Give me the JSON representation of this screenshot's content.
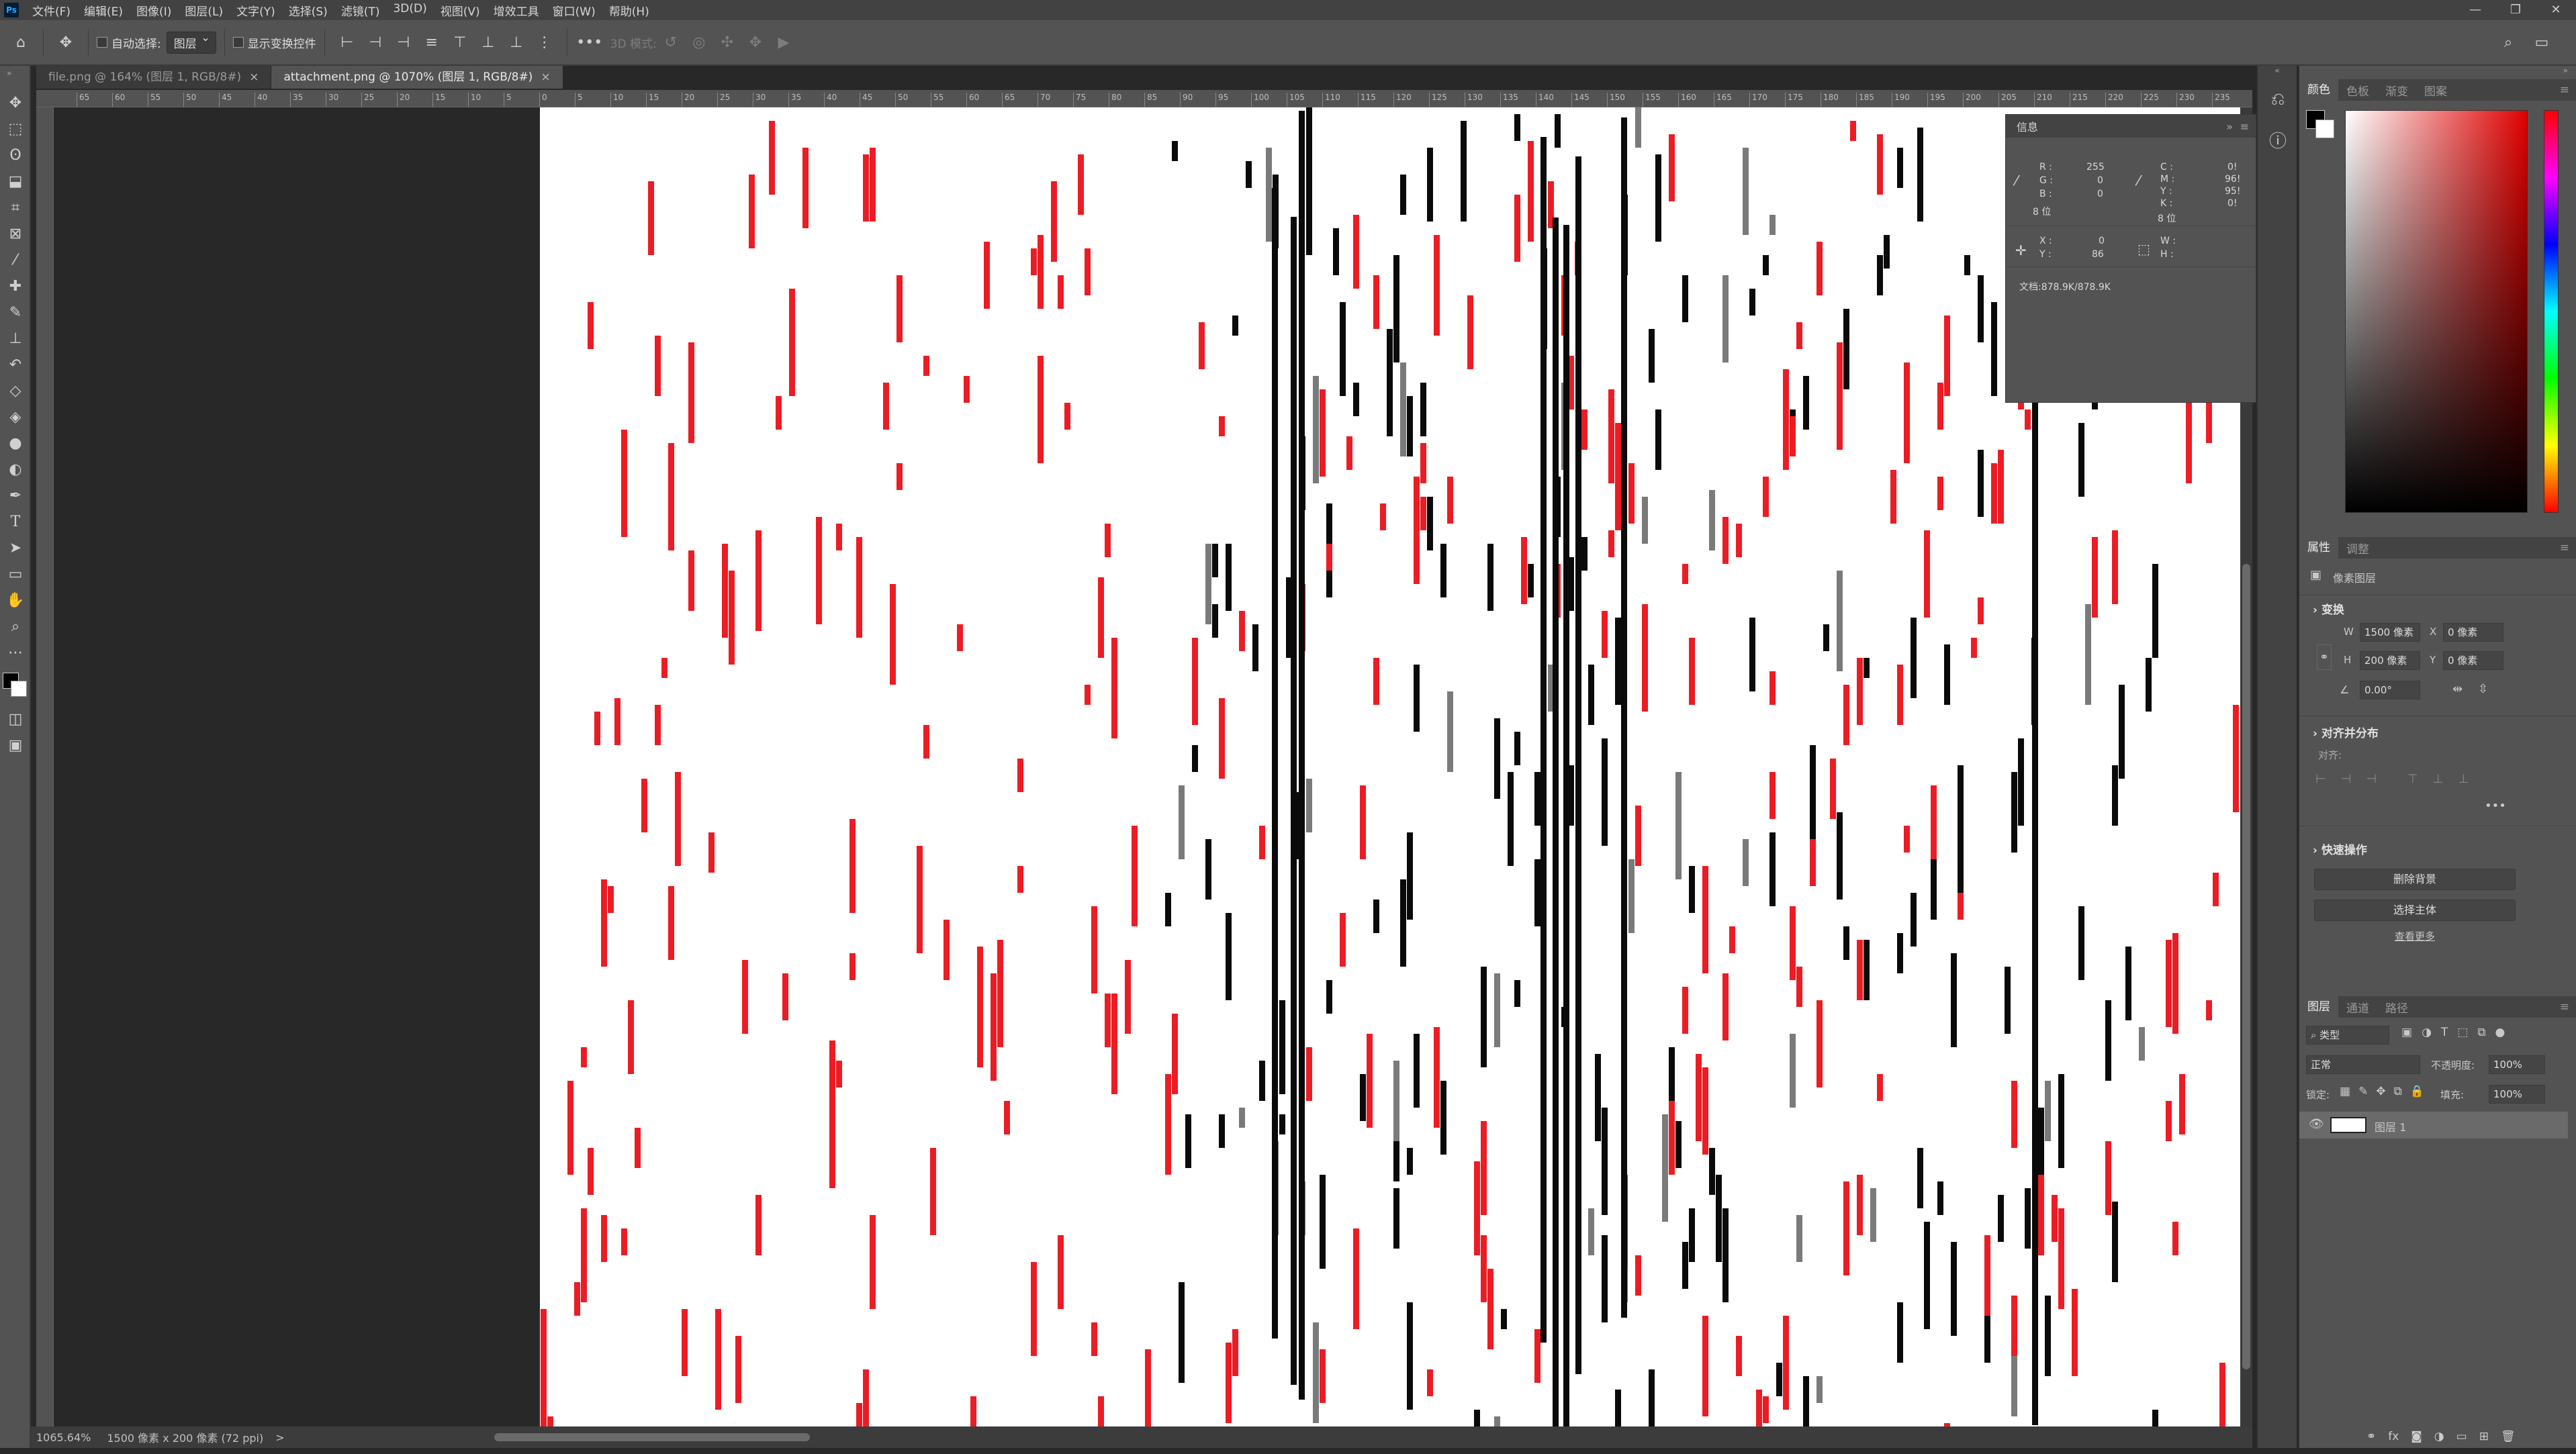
{
  "menu": [
    "文件(F)",
    "编辑(E)",
    "图像(I)",
    "图层(L)",
    "文字(Y)",
    "选择(S)",
    "滤镜(T)",
    "3D(D)",
    "视图(V)",
    "增效工具",
    "窗口(W)",
    "帮助(H)"
  ],
  "window_controls": [
    "—",
    "❐",
    "✕"
  ],
  "options": {
    "auto_select_label": "自动选择:",
    "auto_select_value": "图层",
    "show_transform_label": "显示变换控件",
    "mode_3d_label": "3D 模式:"
  },
  "tabs": [
    {
      "label": "file.png @ 164% (图层 1, RGB/8#)",
      "active": false
    },
    {
      "label": "attachment.png @ 1070% (图层 1, RGB/8#)",
      "active": true
    }
  ],
  "ruler_ticks": [
    "65",
    "60",
    "55",
    "50",
    "45",
    "40",
    "35",
    "30",
    "25",
    "20",
    "15",
    "10",
    "5",
    "0",
    "5",
    "10",
    "15",
    "20",
    "25",
    "30",
    "35",
    "40",
    "45",
    "50",
    "55",
    "60",
    "65",
    "70",
    "75",
    "80",
    "85",
    "90",
    "95",
    "100",
    "105",
    "110",
    "115",
    "120",
    "125",
    "130",
    "135",
    "140",
    "145",
    "150",
    "155",
    "160",
    "165",
    "170",
    "175",
    "180",
    "185",
    "190",
    "195",
    "200",
    "205",
    "210",
    "215",
    "220",
    "225",
    "230",
    "235"
  ],
  "status": {
    "zoom": "1065.64%",
    "doc_size": "1500 像素 x 200 像素 (72 ppi)",
    "arrow": ">"
  },
  "info_panel": {
    "title": "信息",
    "R_label": "R :",
    "R": "255",
    "G_label": "G :",
    "G": "0",
    "B_label": "B :",
    "B": "0",
    "C_label": "C :",
    "C": "0!",
    "M_label": "M :",
    "M": "96!",
    "Y_label": "Y :",
    "Y": "95!",
    "K_label": "K :",
    "K": "0!",
    "bits_left": "8 位",
    "bits_right": "8 位",
    "X_label": "X :",
    "X": "0",
    "Y2_label": "Y :",
    "Y2": "86",
    "W_label": "W :",
    "H_label": "H :",
    "doc": "文档:878.9K/878.9K"
  },
  "color_panel": {
    "tabs": [
      "颜色",
      "色板",
      "渐变",
      "图案"
    ]
  },
  "properties_panel": {
    "tabs": [
      "属性",
      "调整"
    ],
    "layer_type": "像素图层",
    "transform_title": "变换",
    "W_label": "W",
    "W": "1500 像素",
    "X_label": "X",
    "X": "0 像素",
    "H_label": "H",
    "H": "200 像素",
    "Y_label": "Y",
    "Y": "0 像素",
    "angle": "0.00°",
    "align_title": "对齐并分布",
    "align_label": "对齐:",
    "quick_title": "快速操作",
    "remove_bg": "删除背景",
    "select_subject": "选择主体",
    "see_more": "查看更多"
  },
  "layers_panel": {
    "tabs": [
      "图层",
      "通道",
      "路径"
    ],
    "filter": "类型",
    "blend": "正常",
    "opacity_label": "不透明度:",
    "opacity": "100%",
    "lock_label": "锁定:",
    "fill_label": "填充:",
    "fill": "100%",
    "layer_name": "图层 1"
  },
  "canvas_colors": {
    "red": "#ec1c24",
    "black": "#0a0a0a",
    "gray": "#7a7a7a"
  }
}
